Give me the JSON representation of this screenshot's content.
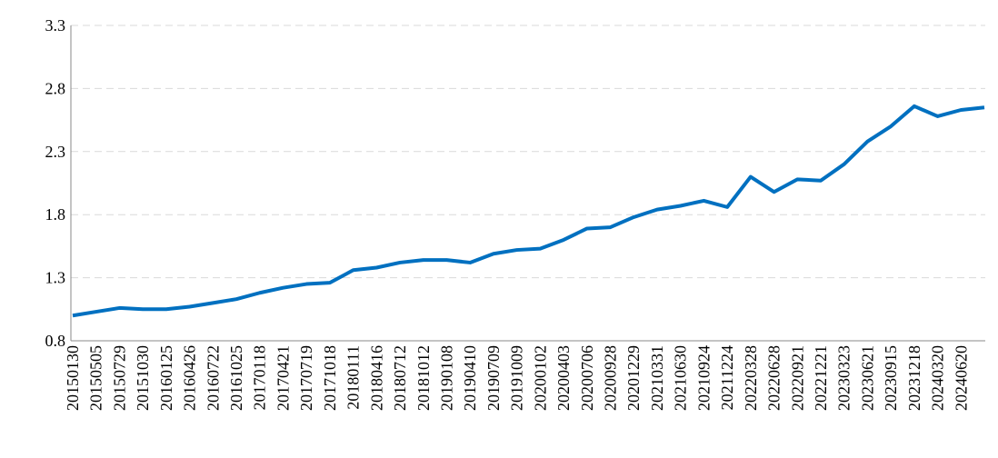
{
  "chart_data": {
    "type": "line",
    "categories": [
      "20150130",
      "20150505",
      "20150729",
      "20151030",
      "20160125",
      "20160426",
      "20160722",
      "20161025",
      "20170118",
      "20170421",
      "20170719",
      "20171018",
      "20180111",
      "20180416",
      "20180712",
      "20181012",
      "20190108",
      "20190410",
      "20190709",
      "20191009",
      "20200102",
      "20200403",
      "20200706",
      "20200928",
      "20201229",
      "20210331",
      "20210630",
      "20210924",
      "20211224",
      "20220328",
      "20220628",
      "20220921",
      "20221221",
      "20230323",
      "20230621",
      "20230915",
      "20231218",
      "20240320",
      "20240620",
      null
    ],
    "values": [
      1.0,
      1.03,
      1.06,
      1.05,
      1.05,
      1.07,
      1.1,
      1.13,
      1.18,
      1.22,
      1.25,
      1.26,
      1.36,
      1.38,
      1.42,
      1.44,
      1.44,
      1.42,
      1.49,
      1.52,
      1.53,
      1.6,
      1.69,
      1.7,
      1.78,
      1.84,
      1.87,
      1.91,
      1.86,
      2.1,
      1.98,
      2.08,
      2.07,
      2.2,
      2.38,
      2.5,
      2.66,
      2.58,
      2.63,
      2.65
    ],
    "color": "#0070c0",
    "ylim": [
      0.8,
      3.3
    ],
    "yticks": [
      0.8,
      1.3,
      1.8,
      2.3,
      2.8,
      3.3
    ],
    "grid": true
  }
}
